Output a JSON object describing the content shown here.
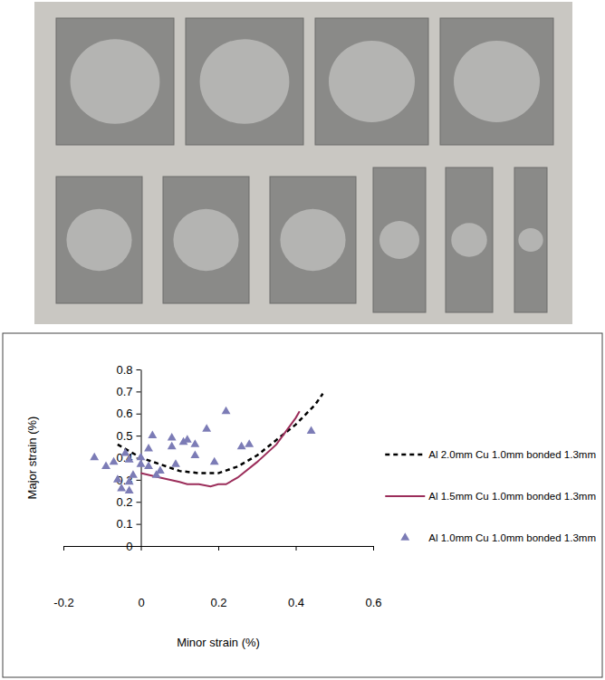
{
  "chart_data": {
    "type": "line",
    "x_label": "Minor strain (%)",
    "y_label": "Major strain (%)",
    "xlim": [
      -0.2,
      0.6
    ],
    "xticks": [
      -0.2,
      0,
      0.2,
      0.4,
      0.6
    ],
    "ylim": [
      0,
      0.8
    ],
    "yticks": [
      0,
      0.1,
      0.2,
      0.3,
      0.4,
      0.5,
      0.6,
      0.7,
      0.8
    ],
    "grid": false,
    "legend": "right",
    "series": [
      {
        "name": "Al 2.0mm Cu 1.0mm bonded 1.3mm",
        "type": "line",
        "line_style": "dashed",
        "color": "#000000",
        "x": [
          -0.06,
          0,
          0.05,
          0.1,
          0.15,
          0.2,
          0.25,
          0.3,
          0.35,
          0.4,
          0.45,
          0.47
        ],
        "values": [
          0.46,
          0.4,
          0.37,
          0.34,
          0.33,
          0.33,
          0.36,
          0.41,
          0.48,
          0.55,
          0.64,
          0.69
        ]
      },
      {
        "name": "Al 1.5mm Cu 1.0mm bonded 1.3mm",
        "type": "line",
        "line_style": "solid",
        "color": "#9b2d5a",
        "x": [
          0,
          0.05,
          0.1,
          0.12,
          0.15,
          0.18,
          0.2,
          0.22,
          0.25,
          0.3,
          0.35,
          0.4,
          0.41
        ],
        "values": [
          0.33,
          0.31,
          0.29,
          0.28,
          0.28,
          0.27,
          0.28,
          0.28,
          0.31,
          0.38,
          0.46,
          0.58,
          0.61
        ]
      },
      {
        "name": "Al 1.0mm Cu 1.0mm bonded 1.3mm",
        "type": "scatter",
        "marker": "triangle",
        "color": "#7c7cb6",
        "x": [
          -0.12,
          -0.09,
          -0.07,
          -0.06,
          -0.05,
          -0.03,
          -0.03,
          -0.02,
          -0.03,
          0.0,
          0.0,
          0.02,
          0.03,
          0.02,
          0.05,
          0.04,
          0.09,
          0.08,
          0.11,
          0.12,
          0.14,
          0.14,
          0.17,
          0.19,
          0.22,
          0.26,
          0.28,
          0.44,
          0.08,
          -0.04
        ],
        "values": [
          0.4,
          0.36,
          0.38,
          0.3,
          0.26,
          0.25,
          0.29,
          0.32,
          0.39,
          0.37,
          0.4,
          0.44,
          0.5,
          0.36,
          0.34,
          0.32,
          0.37,
          0.49,
          0.47,
          0.48,
          0.41,
          0.46,
          0.53,
          0.38,
          0.61,
          0.45,
          0.46,
          0.52,
          0.45,
          0.42
        ]
      }
    ]
  }
}
